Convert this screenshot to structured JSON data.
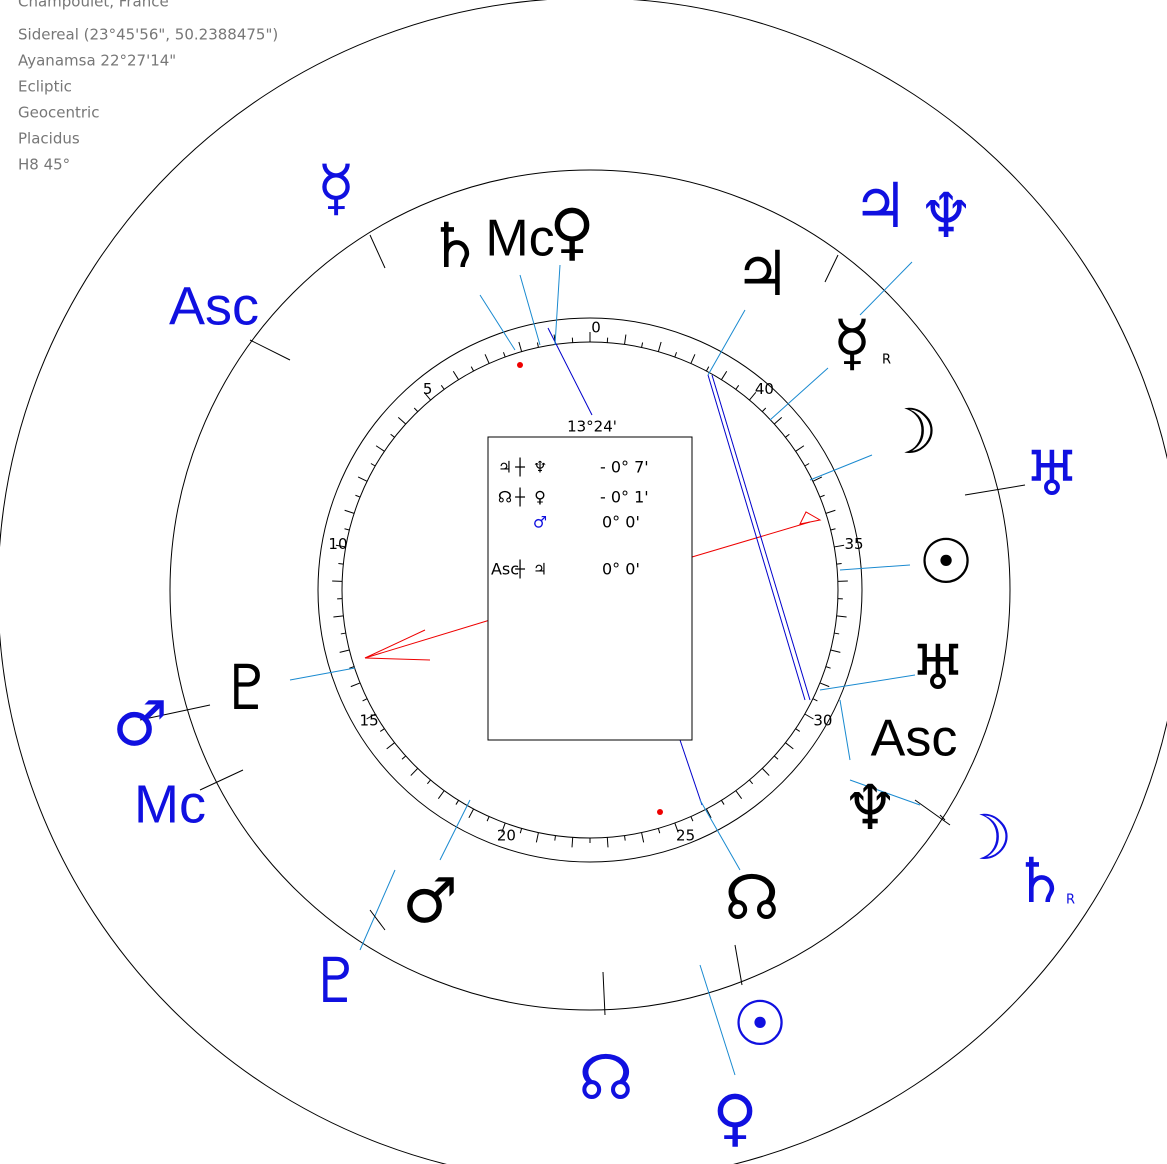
{
  "header": {
    "place": "Champoulet, France",
    "info": [
      "Sidereal (23°45'56\", 50.2388475\")",
      "Ayanamsa 22°27'14\"",
      "Ecliptic",
      "Geocentric",
      "Placidus",
      "H8  45°"
    ]
  },
  "dial": {
    "labels": [
      0,
      5,
      10,
      15,
      20,
      25,
      30,
      35,
      40
    ],
    "pointer": "13°24'"
  },
  "box": {
    "rows": [
      [
        "♃",
        "┼",
        "♆",
        "- 0° 7'"
      ],
      [
        "☊",
        "┼",
        "♀",
        "- 0° 1'"
      ],
      [
        "",
        "",
        "♂",
        "0° 0'"
      ],
      [
        "Asc",
        "┼",
        "♃",
        "0° 0'"
      ]
    ]
  },
  "inner": {
    "saturn": "♄",
    "mc": "Mc",
    "venus": "♀",
    "jupiter": "♃",
    "mercury": "☿",
    "mercury_r": "R",
    "moon": "☽",
    "sun": "☉",
    "uranus": "♅",
    "asc": "Asc",
    "neptune": "♆",
    "node": "☊",
    "mars": "♂",
    "pluto": "♇"
  },
  "outer": {
    "mercury": "☿",
    "asc": "Asc",
    "jupiter": "♃",
    "neptune": "♆",
    "uranus": "♅",
    "moon": "☽",
    "saturn": "♄",
    "saturn_r": "R",
    "sun": "☉",
    "node": "☊",
    "venus": "♀",
    "pluto": "♇",
    "mars": "♂",
    "mc": "Mc"
  }
}
